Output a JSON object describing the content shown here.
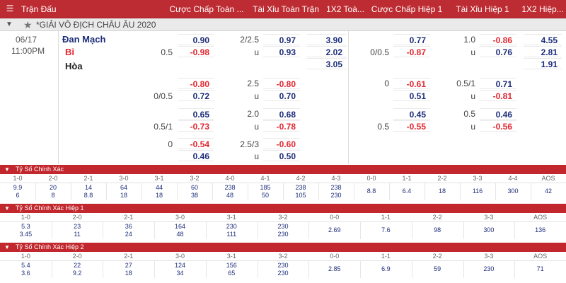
{
  "header": {
    "columns": [
      "Trận Đấu",
      "Cược Chấp Toàn ...",
      "Tài Xỉu Toàn Trận",
      "1X2 Toà...",
      "Cược Chấp Hiệp 1",
      "Tài Xỉu Hiệp 1",
      "1X2 Hiệp..."
    ]
  },
  "league": {
    "name": "*GIẢI VÔ ĐỊCH CHÂU ÂU 2020"
  },
  "match": {
    "date": "06/17",
    "time": "11:00PM",
    "home": "Đan Mạch",
    "away": "Bỉ",
    "draw": "Hòa",
    "main": {
      "hcp_line": "0.5",
      "hcp_home": "0.90",
      "hcp_away": "-0.98",
      "ou_line": "2/2.5",
      "ou_over": "0.97",
      "ou_u": "u",
      "ou_under": "0.93",
      "x12_home": "3.90",
      "x12_away": "2.02",
      "x12_draw": "3.05",
      "h1_hcp_line": "0/0.5",
      "h1_hcp_home": "0.77",
      "h1_hcp_away": "-0.87",
      "h1_ou_line": "1.0",
      "h1_ou_over": "-0.86",
      "h1_ou_u": "u",
      "h1_ou_under": "0.76",
      "h1_x12_home": "4.55",
      "h1_x12_away": "2.81",
      "h1_x12_draw": "1.91"
    },
    "alt": [
      {
        "hcp_line_top": "",
        "hcp_line_bot": "0/0.5",
        "hcp_top": "-0.80",
        "hcp_bot": "0.72",
        "ou_line": "2.5",
        "ou_u": "u",
        "ou_top": "-0.80",
        "ou_bot": "0.70",
        "h1_hcp_line_top": "0",
        "h1_hcp_line_bot": "",
        "h1_hcp_top": "-0.61",
        "h1_hcp_bot": "0.51",
        "h1_ou_line": "0.5/1",
        "h1_ou_u": "u",
        "h1_ou_top": "0.71",
        "h1_ou_bot": "-0.81"
      },
      {
        "hcp_line_top": "",
        "hcp_line_bot": "0.5/1",
        "hcp_top": "0.65",
        "hcp_bot": "-0.73",
        "ou_line": "2.0",
        "ou_u": "u",
        "ou_top": "0.68",
        "ou_bot": "-0.78",
        "h1_hcp_line_top": "",
        "h1_hcp_line_bot": "0.5",
        "h1_hcp_top": "0.45",
        "h1_hcp_bot": "-0.55",
        "h1_ou_line": "0.5",
        "h1_ou_u": "u",
        "h1_ou_top": "0.46",
        "h1_ou_bot": "-0.56"
      },
      {
        "hcp_line_top": "0",
        "hcp_line_bot": "",
        "hcp_top": "-0.54",
        "hcp_bot": "0.46",
        "ou_line": "2.5/3",
        "ou_u": "u",
        "ou_top": "-0.60",
        "ou_bot": "0.50"
      }
    ]
  },
  "correct_score_ft": {
    "title": "Tỷ Số Chính Xác",
    "cols": [
      {
        "h": "1-0",
        "a": "9.9",
        "b": "6"
      },
      {
        "h": "2-0",
        "a": "20",
        "b": "8"
      },
      {
        "h": "2-1",
        "a": "14",
        "b": "8.8"
      },
      {
        "h": "3-0",
        "a": "64",
        "b": "18"
      },
      {
        "h": "3-1",
        "a": "44",
        "b": "18"
      },
      {
        "h": "3-2",
        "a": "60",
        "b": "38"
      },
      {
        "h": "4-0",
        "a": "238",
        "b": "48"
      },
      {
        "h": "4-1",
        "a": "185",
        "b": "50"
      },
      {
        "h": "4-2",
        "a": "238",
        "b": "105"
      },
      {
        "h": "4-3",
        "a": "238",
        "b": "230"
      },
      {
        "h": "0-0",
        "a": "8.8",
        "b": ""
      },
      {
        "h": "1-1",
        "a": "6.4",
        "b": ""
      },
      {
        "h": "2-2",
        "a": "18",
        "b": ""
      },
      {
        "h": "3-3",
        "a": "116",
        "b": ""
      },
      {
        "h": "4-4",
        "a": "300",
        "b": ""
      },
      {
        "h": "AOS",
        "a": "42",
        "b": ""
      }
    ]
  },
  "correct_score_h1": {
    "title": "Tỷ Số Chính Xác Hiệp 1",
    "cols": [
      {
        "h": "1-0",
        "a": "5.3",
        "b": "3.45"
      },
      {
        "h": "2-0",
        "a": "23",
        "b": "11"
      },
      {
        "h": "2-1",
        "a": "36",
        "b": "24"
      },
      {
        "h": "3-0",
        "a": "164",
        "b": "48"
      },
      {
        "h": "3-1",
        "a": "230",
        "b": "111"
      },
      {
        "h": "3-2",
        "a": "230",
        "b": "230"
      },
      {
        "h": "0-0",
        "a": "2.69",
        "b": ""
      },
      {
        "h": "1-1",
        "a": "7.6",
        "b": ""
      },
      {
        "h": "2-2",
        "a": "98",
        "b": ""
      },
      {
        "h": "3-3",
        "a": "300",
        "b": ""
      },
      {
        "h": "AOS",
        "a": "136",
        "b": ""
      }
    ]
  },
  "correct_score_h2": {
    "title": "Tỷ Số Chính Xác Hiệp 2",
    "cols": [
      {
        "h": "1-0",
        "a": "5.4",
        "b": "3.6"
      },
      {
        "h": "2-0",
        "a": "22",
        "b": "9.2"
      },
      {
        "h": "2-1",
        "a": "27",
        "b": "18"
      },
      {
        "h": "3-0",
        "a": "124",
        "b": "34"
      },
      {
        "h": "3-1",
        "a": "156",
        "b": "65"
      },
      {
        "h": "3-2",
        "a": "230",
        "b": "230"
      },
      {
        "h": "0-0",
        "a": "2.85",
        "b": ""
      },
      {
        "h": "1-1",
        "a": "6.9",
        "b": ""
      },
      {
        "h": "2-2",
        "a": "59",
        "b": ""
      },
      {
        "h": "3-3",
        "a": "230",
        "b": ""
      },
      {
        "h": "AOS",
        "a": "71",
        "b": ""
      }
    ]
  }
}
